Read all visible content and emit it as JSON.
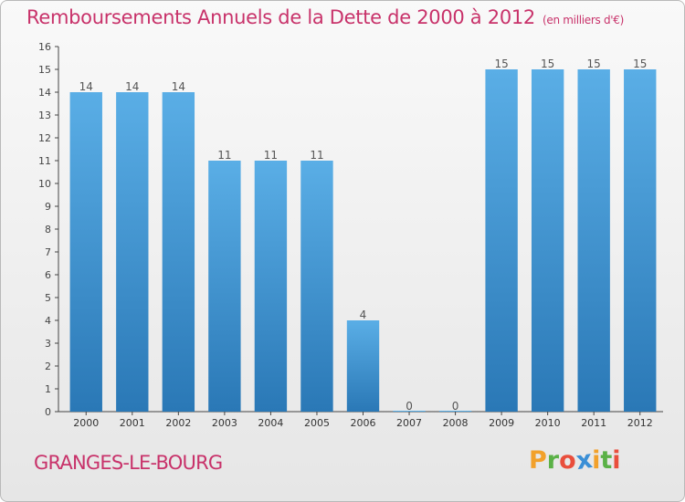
{
  "header": {
    "title": "Remboursements Annuels de la Dette de 2000 à 2012",
    "subtitle": "(en milliers d'€)"
  },
  "commune": "GRANGES-LE-BOURG",
  "logo": {
    "text": "Proxiti",
    "letters": [
      {
        "ch": "P",
        "color": "#f2a12b"
      },
      {
        "ch": "r",
        "color": "#5ab146"
      },
      {
        "ch": "o",
        "color": "#e94e3c"
      },
      {
        "ch": "x",
        "color": "#3b8fd6"
      },
      {
        "ch": "i",
        "color": "#f2a12b"
      },
      {
        "ch": "t",
        "color": "#5ab146"
      },
      {
        "ch": "i",
        "color": "#e94e3c"
      }
    ]
  },
  "chart_data": {
    "type": "bar",
    "title": "Remboursements Annuels de la Dette de 2000 à 2012",
    "subtitle": "(en milliers d'€)",
    "categories": [
      "2000",
      "2001",
      "2002",
      "2003",
      "2004",
      "2005",
      "2006",
      "2007",
      "2008",
      "2009",
      "2010",
      "2011",
      "2012"
    ],
    "values": [
      14,
      14,
      14,
      11,
      11,
      11,
      4,
      0,
      0,
      15,
      15,
      15,
      15
    ],
    "ylim": [
      0,
      16
    ],
    "yticks": [
      0,
      1,
      2,
      3,
      4,
      5,
      6,
      7,
      8,
      9,
      10,
      11,
      12,
      13,
      14,
      15,
      16
    ],
    "grid": false,
    "bar_color_top": "#5aaee6",
    "bar_color_bottom": "#2a78b6",
    "label_color": "#555555"
  }
}
